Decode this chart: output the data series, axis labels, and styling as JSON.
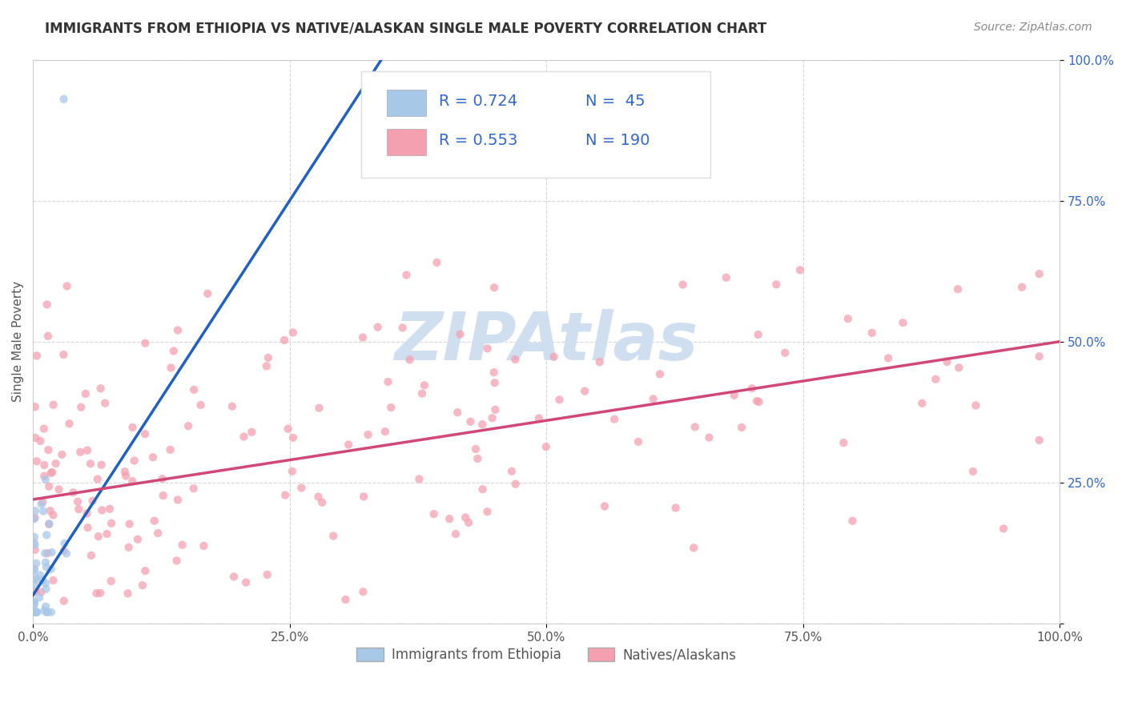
{
  "title": "IMMIGRANTS FROM ETHIOPIA VS NATIVE/ALASKAN SINGLE MALE POVERTY CORRELATION CHART",
  "source": "Source: ZipAtlas.com",
  "ylabel": "Single Male Poverty",
  "xlim": [
    0.0,
    1.0
  ],
  "ylim": [
    0.0,
    1.0
  ],
  "xtick_positions": [
    0.0,
    0.25,
    0.5,
    0.75,
    1.0
  ],
  "xtick_labels": [
    "0.0%",
    "25.0%",
    "50.0%",
    "75.0%",
    "100.0%"
  ],
  "ytick_positions": [
    0.0,
    0.25,
    0.5,
    0.75,
    1.0
  ],
  "ytick_labels": [
    "",
    "25.0%",
    "50.0%",
    "75.0%",
    "100.0%"
  ],
  "legend1_label": "Immigrants from Ethiopia",
  "legend2_label": "Natives/Alaskans",
  "R1": 0.724,
  "N1": 45,
  "R2": 0.553,
  "N2": 190,
  "blue_scatter_color": "#a8c8e8",
  "pink_scatter_color": "#f4a0b0",
  "blue_line_color": "#2060c0",
  "pink_line_color": "#d04878",
  "legend_text_color": "#3366cc",
  "watermark_color": "#d0dff0",
  "background_color": "#ffffff",
  "grid_color": "#cccccc",
  "title_fontsize": 12,
  "tick_fontsize": 11,
  "ylabel_fontsize": 11,
  "scatter_size": 55,
  "scatter_alpha": 0.75,
  "eth_line_intercept": 0.05,
  "eth_line_slope": 2.8,
  "nat_line_intercept": 0.22,
  "nat_line_slope": 0.28
}
